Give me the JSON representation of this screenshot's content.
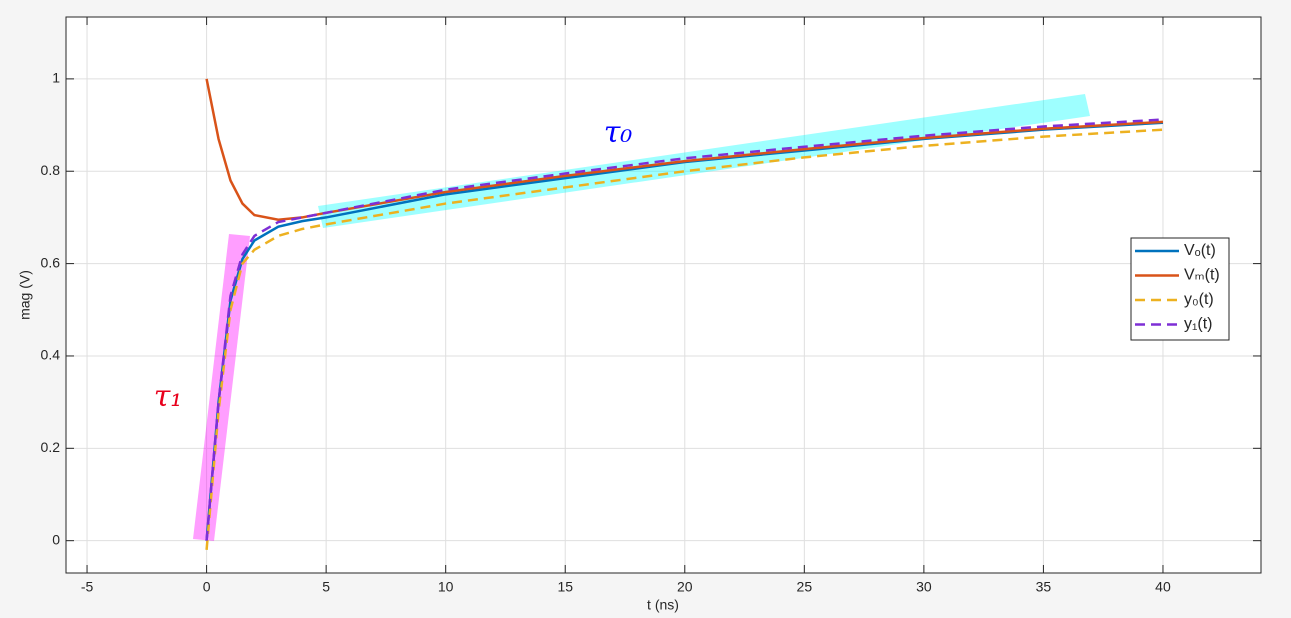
{
  "chart_data": {
    "type": "line",
    "xlabel": "t (ns)",
    "ylabel": "mag (V)",
    "annotations": [
      "τ₀",
      "τ₁"
    ],
    "x": [
      0,
      0.5,
      1,
      1.5,
      2,
      3,
      4,
      5,
      10,
      15,
      20,
      25,
      30,
      35,
      40
    ],
    "series": [
      {
        "name": "Vₒ(t)",
        "color": "#0072bd",
        "dash": false,
        "values": [
          0,
          0.3,
          0.52,
          0.61,
          0.65,
          0.68,
          0.692,
          0.7,
          0.75,
          0.785,
          0.82,
          0.845,
          0.87,
          0.89,
          0.905
        ]
      },
      {
        "name": "Vₘ(t)",
        "color": "#d95319",
        "dash": false,
        "values": [
          1,
          0.87,
          0.78,
          0.73,
          0.705,
          0.695,
          0.7,
          0.71,
          0.755,
          0.79,
          0.822,
          0.848,
          0.872,
          0.892,
          0.907
        ]
      },
      {
        "name": "y₀(t)",
        "color": "#edb120",
        "dash": true,
        "values": [
          -0.02,
          0.28,
          0.5,
          0.6,
          0.63,
          0.66,
          0.675,
          0.685,
          0.73,
          0.765,
          0.8,
          0.83,
          0.855,
          0.875,
          0.89
        ]
      },
      {
        "name": "y₁(t)",
        "color": "#7e2fd5",
        "dash": true,
        "values": [
          0,
          0.3,
          0.53,
          0.62,
          0.66,
          0.69,
          0.7,
          0.71,
          0.76,
          0.795,
          0.828,
          0.853,
          0.877,
          0.897,
          0.912
        ]
      }
    ],
    "xlim": [
      -5.88,
      44.1
    ],
    "ylim": [
      -0.07,
      1.134
    ],
    "xticks": [
      -5,
      0,
      5,
      10,
      15,
      20,
      25,
      30,
      35,
      40
    ],
    "yticks": [
      0,
      0.2,
      0.4,
      0.6,
      0.8,
      1
    ],
    "grid": true,
    "legend": "east"
  }
}
